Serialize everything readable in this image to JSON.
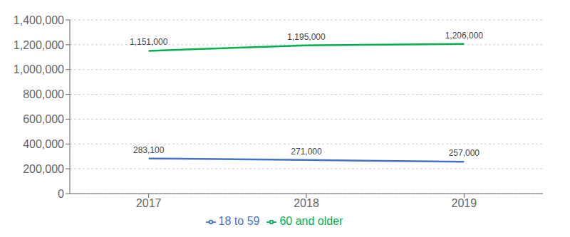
{
  "chart_data": {
    "type": "line",
    "x": [
      2017,
      2018,
      2019
    ],
    "xlim": [
      2016.5,
      2019.5
    ],
    "xticks": [
      2017,
      2018,
      2019
    ],
    "ylim": [
      0,
      1400000
    ],
    "yticks": [
      0,
      {
        "value": 200000,
        "label": "200,000"
      },
      {
        "value": 400000,
        "label": "400,000"
      },
      {
        "value": 600000,
        "label": "600,000"
      },
      {
        "value": 800000,
        "label": "800,000"
      },
      {
        "value": 1000000,
        "label": "1,000,000"
      },
      {
        "value": 1200000,
        "label": "1,200,000"
      },
      {
        "value": 1400000,
        "label": "1,400,000"
      }
    ],
    "grid": "y",
    "legend": "bottom",
    "data_labels": true,
    "series": [
      {
        "name": "18 to 59",
        "color": "#4472c4",
        "values": [
          283100,
          271000,
          257000
        ],
        "value_labels": [
          "283,100",
          "271,000",
          "257,000"
        ]
      },
      {
        "name": "60 and older",
        "color": "#00b050",
        "values": [
          1151000,
          1195000,
          1206000
        ],
        "value_labels": [
          "1,151,000",
          "1,195,000",
          "1,206,000"
        ]
      }
    ]
  }
}
